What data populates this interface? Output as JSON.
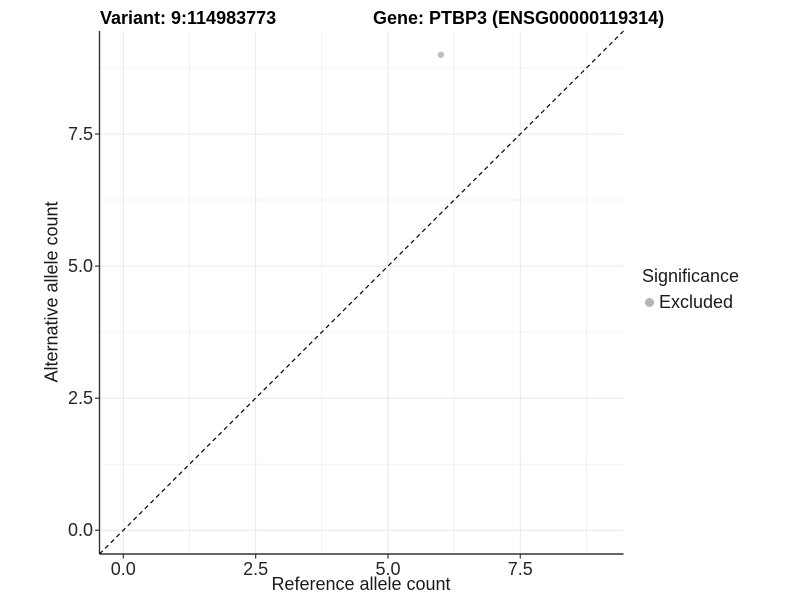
{
  "figure": {
    "background": "#ffffff"
  },
  "chart_data": {
    "type": "scatter",
    "title_left": "Variant: 9:114983773",
    "title_right": "Gene: PTBP3 (ENSG00000119314)",
    "xlabel": "Reference allele count",
    "ylabel": "Alternative allele count",
    "xlim": [
      -0.45,
      9.45
    ],
    "ylim": [
      -0.45,
      9.45
    ],
    "x_ticks": [
      0,
      2.5,
      5,
      7.5
    ],
    "x_tick_labels": [
      "0.0",
      "2.5",
      "5.0",
      "7.5"
    ],
    "y_ticks": [
      0,
      2.5,
      5,
      7.5
    ],
    "y_tick_labels": [
      "0.0",
      "2.5",
      "5.0",
      "7.5"
    ],
    "x_minor_ticks": [
      1.25,
      3.75,
      6.25,
      8.75
    ],
    "y_minor_ticks": [
      1.25,
      3.75,
      6.25,
      8.75
    ],
    "grid": "major+minor",
    "reference_line": {
      "type": "identity y=x",
      "style": "dashed",
      "color": "#000000"
    },
    "series": [
      {
        "name": "Excluded",
        "color": "#c0c0c0",
        "point_radius": 3.2,
        "points": [
          {
            "x": 6,
            "y": 9
          }
        ]
      }
    ],
    "legend": {
      "title": "Significance",
      "position": "right",
      "entries": [
        {
          "label": "Excluded",
          "swatch_color": "#b5b5b5"
        }
      ]
    },
    "colors": {
      "grid_major": "#e8e8e8",
      "grid_minor": "#f3f3f3",
      "axis_line": "#333333",
      "tick_text": "#262626",
      "title_text": "#000000"
    }
  }
}
